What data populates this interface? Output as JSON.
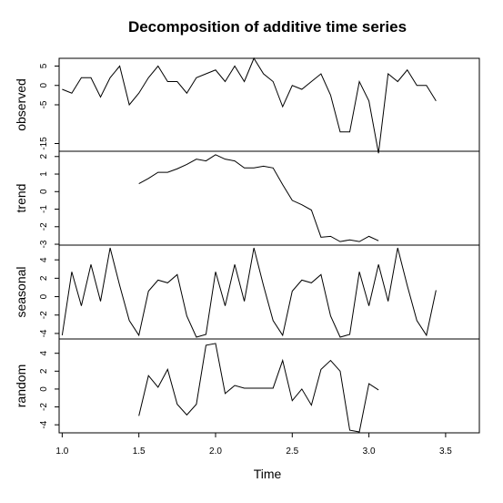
{
  "chart_data": {
    "type": "line",
    "title": "Decomposition of additive time series",
    "xlabel": "Time",
    "xlim": [
      0.98,
      3.72
    ],
    "xticks": [
      1.0,
      1.5,
      2.0,
      2.5,
      3.0,
      3.5
    ],
    "xtick_labels": [
      "1.0",
      "1.5",
      "2.0",
      "2.5",
      "3.0",
      "3.5"
    ],
    "frequency": 16,
    "x_start": 1.0,
    "grid": false,
    "panels": [
      {
        "name": "observed",
        "ylabel": "observed",
        "ylim": [
          -17.0,
          7.0
        ],
        "yticks": [
          5,
          0,
          -5,
          -15
        ],
        "ytick_labels": [
          "5",
          "0",
          "-5",
          "-15"
        ],
        "start_index": 0,
        "values": [
          -1,
          -2,
          2,
          2,
          -3,
          2,
          5,
          -5,
          -2,
          2,
          5,
          1,
          1,
          -2,
          2,
          3,
          4,
          1,
          5,
          1,
          7,
          3,
          1,
          -5.5,
          0,
          -1,
          1,
          3,
          -2.5,
          -12,
          -12,
          1,
          -4,
          -17.5,
          3,
          1,
          4,
          0,
          0,
          -4
        ]
      },
      {
        "name": "trend",
        "ylabel": "trend",
        "ylim": [
          -3.05,
          2.3
        ],
        "yticks": [
          2,
          1,
          0,
          -1,
          -2,
          -3
        ],
        "ytick_labels": [
          "2",
          "1",
          "0",
          "-1",
          "-2",
          "-3"
        ],
        "start_index": 8,
        "values": [
          0.45,
          0.75,
          1.1,
          1.1,
          1.3,
          1.55,
          1.85,
          1.75,
          2.1,
          1.85,
          1.75,
          1.35,
          1.35,
          1.45,
          1.35,
          0.4,
          -0.5,
          -0.75,
          -1.05,
          -2.6,
          -2.55,
          -2.85,
          -2.75,
          -2.85,
          -2.55,
          -2.8
        ]
      },
      {
        "name": "seasonal",
        "ylabel": "seasonal",
        "ylim": [
          -4.6,
          5.6
        ],
        "yticks": [
          4,
          2,
          0,
          -2,
          -4
        ],
        "ytick_labels": [
          "4",
          "2",
          "0",
          "-2",
          "-4"
        ],
        "start_index": 0,
        "values": [
          -4.2,
          2.7,
          -1,
          3.5,
          -0.5,
          5.3,
          1.2,
          -2.6,
          -4.2,
          0.6,
          1.8,
          1.5,
          2.4,
          -2.1,
          -4.4,
          -4.1,
          2.7,
          -1,
          3.5,
          -0.5,
          5.3,
          1.2,
          -2.6,
          -4.2,
          0.6,
          1.8,
          1.5,
          2.4,
          -2.1,
          -4.4,
          -4.1,
          2.7,
          -1,
          3.5,
          -0.5,
          5.3,
          1.2,
          -2.6,
          -4.2,
          0.7
        ]
      },
      {
        "name": "random",
        "ylabel": "random",
        "ylim": [
          -4.9,
          5.6
        ],
        "yticks": [
          4,
          2,
          0,
          -2,
          -4
        ],
        "ytick_labels": [
          "4",
          "2",
          "0",
          "-2",
          "-4"
        ],
        "start_index": 8,
        "values": [
          -3,
          1.5,
          0.2,
          2.2,
          -1.7,
          -2.9,
          -1.7,
          4.9,
          5.1,
          -0.5,
          0.4,
          0.1,
          0.1,
          0.1,
          0.1,
          3.2,
          -1.3,
          0,
          -1.8,
          2.2,
          3.2,
          2,
          -4.6,
          -4.8,
          0.6,
          -0.1
        ]
      }
    ]
  }
}
